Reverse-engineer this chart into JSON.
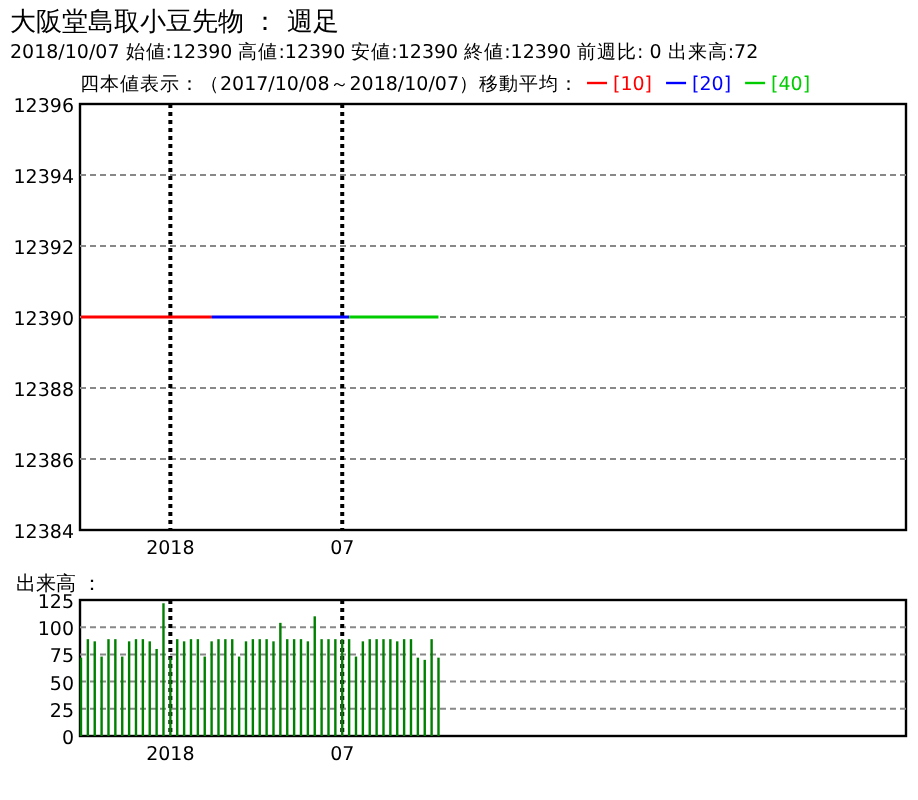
{
  "chart_data": [
    {
      "type": "line",
      "title": "大阪堂島取小豆先物 ： 週足",
      "subtitle": "2018/10/07 始値:12390 高値:12390 安値:12390 終値:12390 前週比: 0 出来高:72",
      "legend_title": "四本値表示：（2017/10/08～2018/10/07）移動平均：",
      "legend": "top",
      "x": [
        "2017-10-08",
        "2017-10-15",
        "2017-10-22",
        "2017-10-29",
        "2017-11-05",
        "2017-11-12",
        "2017-11-19",
        "2017-11-26",
        "2017-12-03",
        "2017-12-10",
        "2017-12-17",
        "2017-12-24",
        "2017-12-31",
        "2018-01-07",
        "2018-01-14",
        "2018-01-21",
        "2018-01-28",
        "2018-02-04",
        "2018-02-11",
        "2018-02-18",
        "2018-02-25",
        "2018-03-04",
        "2018-03-11",
        "2018-03-18",
        "2018-03-25",
        "2018-04-01",
        "2018-04-08",
        "2018-04-15",
        "2018-04-22",
        "2018-04-29",
        "2018-05-06",
        "2018-05-13",
        "2018-05-20",
        "2018-05-27",
        "2018-06-03",
        "2018-06-10",
        "2018-06-17",
        "2018-06-24",
        "2018-07-01",
        "2018-07-08",
        "2018-07-15",
        "2018-07-22",
        "2018-07-29",
        "2018-08-05",
        "2018-08-12",
        "2018-08-19",
        "2018-08-26",
        "2018-09-02",
        "2018-09-09",
        "2018-09-16",
        "2018-09-23",
        "2018-09-30",
        "2018-10-07"
      ],
      "series": [
        {
          "name": "[10]",
          "type": "line",
          "color": "#ff0000",
          "values": [
            12390,
            12390,
            12390,
            12390,
            12390,
            12390,
            12390,
            12390,
            12390,
            12390,
            12390,
            12390,
            12390,
            12390,
            12390,
            12390,
            12390,
            12390,
            12390,
            12390,
            null,
            null,
            null,
            null,
            null,
            null,
            null,
            null,
            null,
            null,
            null,
            null,
            null,
            null,
            null,
            null,
            null,
            null,
            null,
            null,
            null,
            null,
            null,
            null,
            null,
            null,
            null,
            null,
            null,
            null,
            null,
            null,
            null
          ]
        },
        {
          "name": "[20]",
          "type": "line",
          "color": "#0000ff",
          "values": [
            null,
            null,
            null,
            null,
            null,
            null,
            null,
            null,
            null,
            null,
            null,
            null,
            null,
            null,
            null,
            null,
            null,
            null,
            null,
            12390,
            12390,
            12390,
            12390,
            12390,
            12390,
            12390,
            12390,
            12390,
            12390,
            12390,
            12390,
            12390,
            12390,
            12390,
            12390,
            12390,
            12390,
            12390,
            12390,
            12390,
            null,
            null,
            null,
            null,
            null,
            null,
            null,
            null,
            null,
            null,
            null,
            null,
            null
          ]
        },
        {
          "name": "[40]",
          "type": "line",
          "color": "#00cc00",
          "values": [
            null,
            null,
            null,
            null,
            null,
            null,
            null,
            null,
            null,
            null,
            null,
            null,
            null,
            null,
            null,
            null,
            null,
            null,
            null,
            null,
            null,
            null,
            null,
            null,
            null,
            null,
            null,
            null,
            null,
            null,
            null,
            null,
            null,
            null,
            null,
            null,
            null,
            null,
            null,
            12390,
            12390,
            12390,
            12390,
            12390,
            12390,
            12390,
            12390,
            12390,
            12390,
            12390,
            12390,
            12390,
            12390
          ]
        }
      ],
      "xlim": [
        "2017-10-07",
        "2020-01-26"
      ],
      "xticks": [
        {
          "value": "2018-01-07",
          "label": "2018"
        },
        {
          "value": "2018-07-01",
          "label": "07"
        }
      ],
      "ylim": [
        12384,
        12396
      ],
      "yticks": [
        12384,
        12386,
        12388,
        12390,
        12392,
        12394,
        12396
      ],
      "grid": true
    },
    {
      "type": "bar",
      "ylabel": "出来高 ：",
      "color": "#008000",
      "x": [
        "2017-10-08",
        "2017-10-15",
        "2017-10-22",
        "2017-10-29",
        "2017-11-05",
        "2017-11-12",
        "2017-11-19",
        "2017-11-26",
        "2017-12-03",
        "2017-12-10",
        "2017-12-17",
        "2017-12-24",
        "2017-12-31",
        "2018-01-07",
        "2018-01-14",
        "2018-01-21",
        "2018-01-28",
        "2018-02-04",
        "2018-02-11",
        "2018-02-18",
        "2018-02-25",
        "2018-03-04",
        "2018-03-11",
        "2018-03-18",
        "2018-03-25",
        "2018-04-01",
        "2018-04-08",
        "2018-04-15",
        "2018-04-22",
        "2018-04-29",
        "2018-05-06",
        "2018-05-13",
        "2018-05-20",
        "2018-05-27",
        "2018-06-03",
        "2018-06-10",
        "2018-06-17",
        "2018-06-24",
        "2018-07-01",
        "2018-07-08",
        "2018-07-15",
        "2018-07-22",
        "2018-07-29",
        "2018-08-05",
        "2018-08-12",
        "2018-08-19",
        "2018-08-26",
        "2018-09-02",
        "2018-09-09",
        "2018-09-16",
        "2018-09-23",
        "2018-09-30",
        "2018-10-07"
      ],
      "values": [
        72,
        89,
        87,
        73,
        89,
        89,
        73,
        87,
        89,
        89,
        87,
        80,
        122,
        72,
        89,
        87,
        89,
        89,
        73,
        87,
        89,
        89,
        89,
        73,
        87,
        89,
        89,
        89,
        87,
        104,
        89,
        89,
        89,
        87,
        110,
        89,
        89,
        89,
        89,
        89,
        73,
        87,
        89,
        89,
        89,
        89,
        87,
        89,
        89,
        72,
        70,
        89,
        72
      ],
      "xlim": [
        "2017-10-07",
        "2020-01-26"
      ],
      "xticks": [
        {
          "value": "2018-01-07",
          "label": "2018"
        },
        {
          "value": "2018-07-01",
          "label": "07"
        }
      ],
      "ylim": [
        0,
        125
      ],
      "yticks": [
        0,
        25,
        50,
        75,
        100,
        125
      ],
      "grid": true
    }
  ]
}
